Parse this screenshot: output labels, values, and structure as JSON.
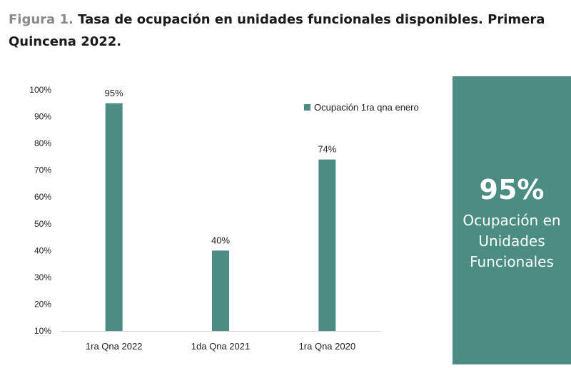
{
  "heading": {
    "figure_label": "Figura 1.",
    "title": "Tasa de ocupación en unidades funcionales disponibles. Primera Quincena 2022."
  },
  "highlight": {
    "value": "95%",
    "text": "Ocupación en Unidades Funcionales"
  },
  "colors": {
    "bar": "#4b8c83",
    "panel": "#4b8c83"
  },
  "chart_data": {
    "type": "bar",
    "title": "",
    "xlabel": "",
    "ylabel": "",
    "categories": [
      "1ra Qna 2022",
      "1da Qna 2021",
      "1ra Qna 2020"
    ],
    "series": [
      {
        "name": "Ocupación 1ra qna enero",
        "values": [
          95,
          40,
          74
        ]
      }
    ],
    "data_labels": [
      "95%",
      "40%",
      "74%"
    ],
    "ylim": [
      10,
      100
    ],
    "yticks": [
      "10%",
      "20%",
      "30%",
      "40%",
      "50%",
      "60%",
      "70%",
      "80%",
      "90%",
      "100%"
    ],
    "grid": false,
    "legend_position": "top-right"
  }
}
